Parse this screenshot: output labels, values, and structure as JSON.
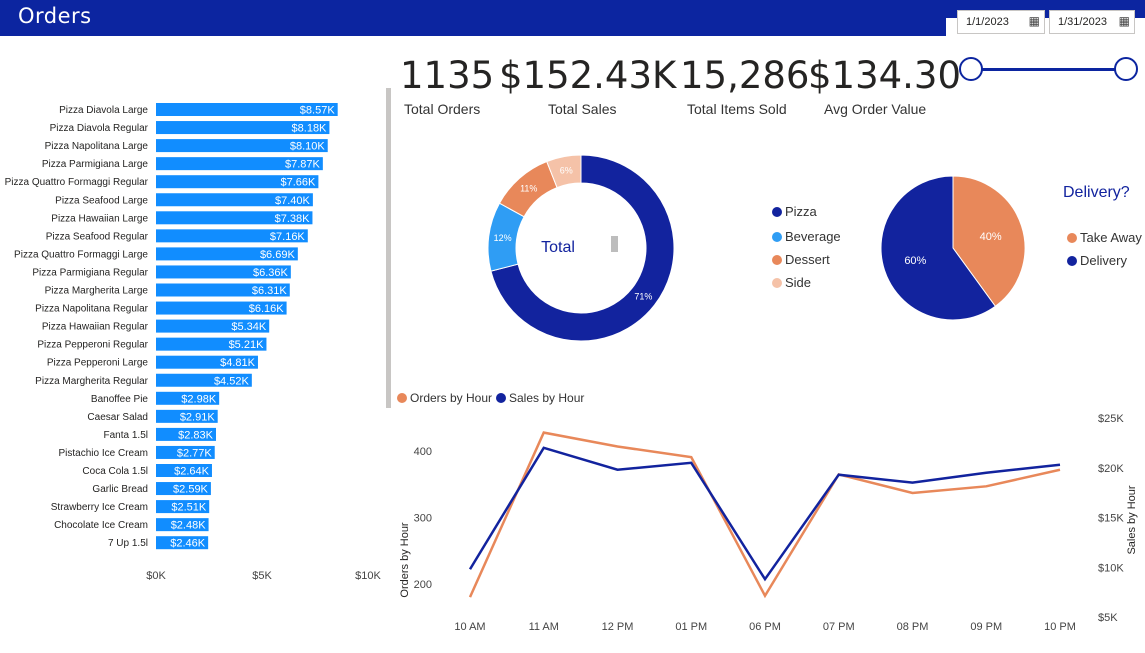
{
  "header": {
    "title": "Orders"
  },
  "date_slicer": {
    "start": "1/1/2023",
    "end": "1/31/2023",
    "calendar_icon": "calendar-icon",
    "start_fraction": 0,
    "end_fraction": 1
  },
  "kpis": [
    {
      "value": "1135",
      "label": "Total Orders"
    },
    {
      "value": "$152.43K",
      "label": "Total Sales"
    },
    {
      "value": "15,286",
      "label": "Total Items Sold"
    },
    {
      "value": "$134.30",
      "label": "Avg Order Value"
    }
  ],
  "colors": {
    "header": "#0c25a0",
    "bar": "#118dff",
    "pizza": "#12239e",
    "beverage": "#2f9df4",
    "dessert": "#e8885a",
    "side": "#f5c2a8",
    "takeaway": "#e8885a",
    "delivery": "#12239e",
    "orders_line": "#e8885a",
    "sales_line": "#12239e"
  },
  "chart_data": [
    {
      "type": "bar",
      "orientation": "horizontal",
      "categories": [
        "Pizza Diavola Large",
        "Pizza Diavola Regular",
        "Pizza Napolitana Large",
        "Pizza Parmigiana Large",
        "Pizza Quattro Formaggi Regular",
        "Pizza Seafood Large",
        "Pizza Hawaiian Large",
        "Pizza Seafood Regular",
        "Pizza Quattro Formaggi Large",
        "Pizza Parmigiana Regular",
        "Pizza Margherita Large",
        "Pizza Napolitana Regular",
        "Pizza Hawaiian Regular",
        "Pizza Pepperoni Regular",
        "Pizza Pepperoni Large",
        "Pizza Margherita Regular",
        "Banoffee Pie",
        "Caesar Salad",
        "Fanta 1.5l",
        "Pistachio Ice Cream",
        "Coca Cola 1.5l",
        "Garlic Bread",
        "Strawberry Ice Cream",
        "Chocolate Ice Cream",
        "7 Up 1.5l"
      ],
      "values": [
        8570,
        8180,
        8100,
        7870,
        7660,
        7400,
        7380,
        7160,
        6690,
        6360,
        6310,
        6160,
        5340,
        5210,
        4810,
        4520,
        2980,
        2910,
        2830,
        2770,
        2640,
        2590,
        2510,
        2480,
        2460
      ],
      "labels": [
        "$8.57K",
        "$8.18K",
        "$8.10K",
        "$7.87K",
        "$7.66K",
        "$7.40K",
        "$7.38K",
        "$7.16K",
        "$6.69K",
        "$6.36K",
        "$6.31K",
        "$6.16K",
        "$5.34K",
        "$5.21K",
        "$4.81K",
        "$4.52K",
        "$2.98K",
        "$2.91K",
        "$2.83K",
        "$2.77K",
        "$2.64K",
        "$2.59K",
        "$2.51K",
        "$2.48K",
        "$2.46K"
      ],
      "xlim": [
        0,
        10000
      ],
      "xticks": [
        "$0K",
        "$5K",
        "$10K"
      ]
    },
    {
      "type": "pie",
      "donut": true,
      "center_label": "Total",
      "categories": [
        "Pizza",
        "Beverage",
        "Dessert",
        "Side"
      ],
      "values": [
        71,
        12,
        11,
        6
      ],
      "labels": [
        "71%",
        "12%",
        "11%",
        "6%"
      ]
    },
    {
      "type": "pie",
      "title": "Delivery?",
      "categories": [
        "Take Away",
        "Delivery"
      ],
      "values": [
        40,
        60
      ],
      "labels": [
        "40%",
        "60%"
      ]
    },
    {
      "type": "line",
      "x": [
        "10 AM",
        "11 AM",
        "12 PM",
        "01 PM",
        "06 PM",
        "07 PM",
        "08 PM",
        "09 PM",
        "10 PM"
      ],
      "series": [
        {
          "name": "Orders by Hour",
          "axis": "left",
          "values": [
            180,
            428,
            407,
            391,
            182,
            365,
            337,
            347,
            372
          ]
        },
        {
          "name": "Sales by Hour",
          "axis": "right",
          "values": [
            9800,
            22000,
            19800,
            20500,
            8800,
            19300,
            18500,
            19500,
            20300
          ]
        }
      ],
      "ylabel": "Orders by Hour",
      "y2label": "Sales by Hour",
      "ylim": [
        150,
        450
      ],
      "yticks": [
        200,
        300,
        400
      ],
      "y2lim": [
        5000,
        25000
      ],
      "y2ticks": [
        "$5K",
        "$10K",
        "$15K",
        "$20K",
        "$25K"
      ]
    }
  ]
}
